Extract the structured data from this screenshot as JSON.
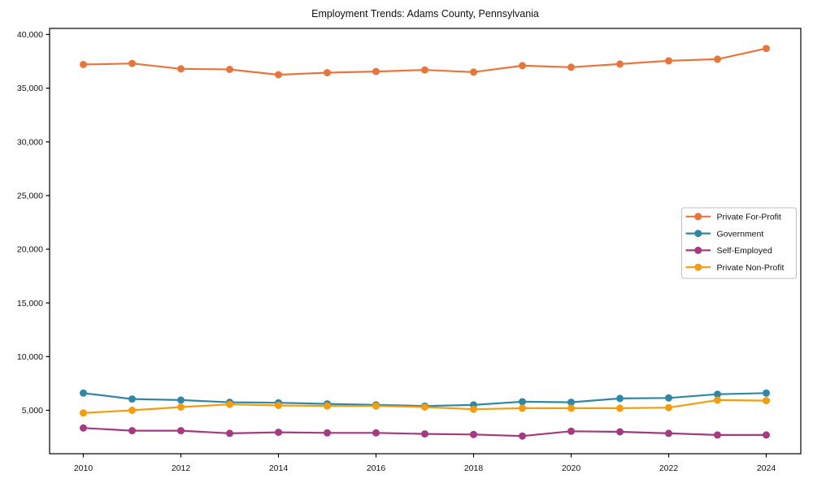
{
  "figure": {
    "background_color": "#ffffff",
    "plot_border_color": "#000000"
  },
  "chart_data": {
    "type": "line",
    "title": "Employment Trends: Adams County, Pennsylvania",
    "xlabel": "",
    "ylabel": "",
    "x": [
      2010,
      2011,
      2012,
      2013,
      2014,
      2015,
      2016,
      2017,
      2018,
      2019,
      2020,
      2021,
      2022,
      2023,
      2024
    ],
    "series": [
      {
        "name": "Private For-Profit",
        "color": "#e8763c",
        "values": [
          37200,
          37300,
          36800,
          36750,
          36250,
          36450,
          36550,
          36700,
          36500,
          37100,
          36950,
          37250,
          37550,
          37700,
          38700
        ]
      },
      {
        "name": "Government",
        "color": "#2f87a4",
        "values": [
          6600,
          6050,
          5950,
          5750,
          5700,
          5600,
          5500,
          5400,
          5500,
          5800,
          5750,
          6100,
          6150,
          6500,
          6600
        ]
      },
      {
        "name": "Self-Employed",
        "color": "#a43a80",
        "values": [
          3350,
          3100,
          3100,
          2850,
          2950,
          2900,
          2900,
          2800,
          2750,
          2600,
          3050,
          3000,
          2850,
          2700,
          2700
        ]
      },
      {
        "name": "Private Non-Profit",
        "color": "#f39c0d",
        "values": [
          4750,
          5000,
          5300,
          5550,
          5450,
          5400,
          5400,
          5300,
          5100,
          5200,
          5200,
          5200,
          5250,
          5950,
          5900
        ]
      }
    ],
    "xticks": [
      2010,
      2012,
      2014,
      2016,
      2018,
      2020,
      2022,
      2024
    ],
    "xtick_labels": [
      "2010",
      "2012",
      "2014",
      "2016",
      "2018",
      "2020",
      "2022",
      "2024"
    ],
    "yticks": [
      5000,
      10000,
      15000,
      20000,
      25000,
      30000,
      35000,
      40000
    ],
    "ytick_labels": [
      "5,000",
      "10,000",
      "15,000",
      "20,000",
      "25,000",
      "30,000",
      "35,000",
      "40,000"
    ],
    "ylim": [
      800,
      40500
    ],
    "grid": false,
    "marker": "circle",
    "legend": {
      "position": "middle-right",
      "border_color": "#c0c0c0",
      "background": "#ffffff",
      "items": [
        "Private For-Profit",
        "Government",
        "Self-Employed",
        "Private Non-Profit"
      ]
    }
  }
}
